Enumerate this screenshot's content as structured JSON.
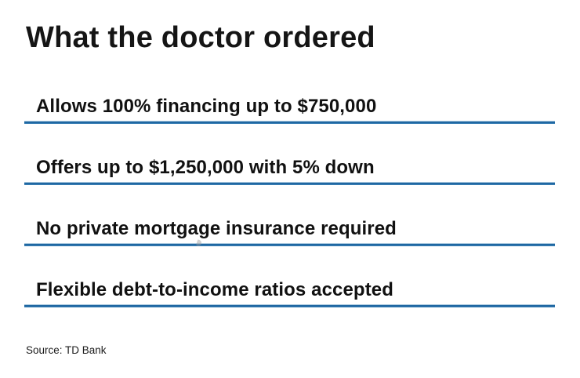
{
  "page": {
    "background_color": "#ffffff",
    "accent_line_color": "#1f67a2",
    "text_color": "#111111"
  },
  "chart_data": {
    "type": "table",
    "title": "What the doctor ordered",
    "rows": [
      "Allows 100% financing up to $750,000",
      "Offers up to $1,250,000 with 5% down",
      "No private mortgage insurance required",
      "Flexible debt-to-income ratios accepted"
    ],
    "source": "Source: TD Bank",
    "layout": {
      "legend": false,
      "grid": false,
      "row_divider_color": "#1f67a2",
      "row_count": 4
    }
  }
}
